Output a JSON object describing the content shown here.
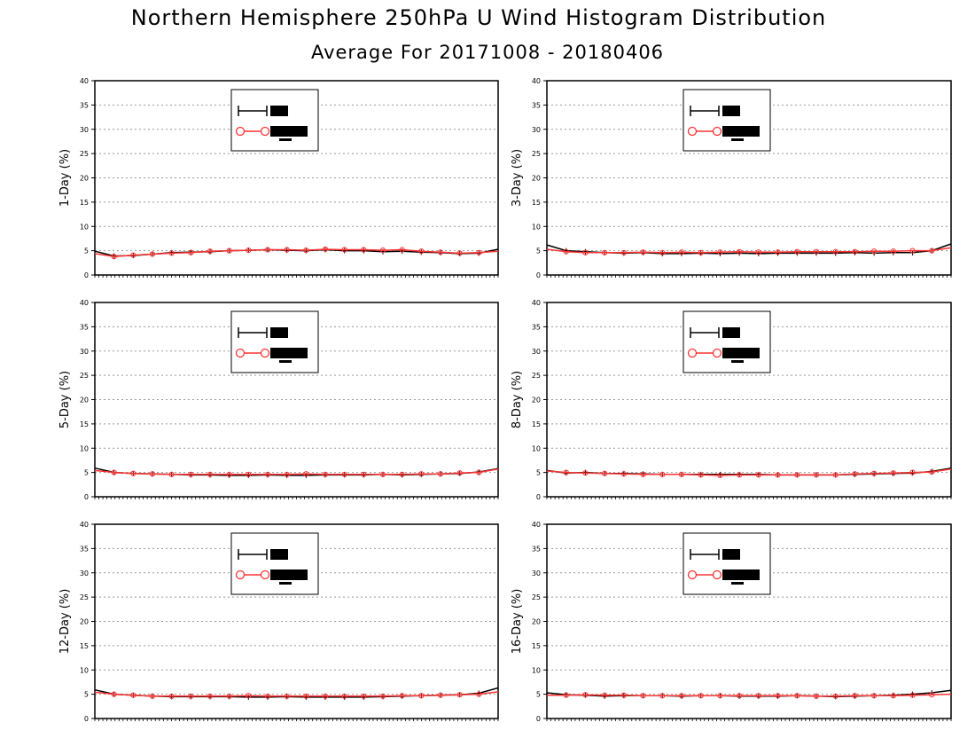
{
  "title": "Northern Hemisphere 250hPa U Wind Histogram Distribution",
  "subtitle": "Average For 20171008 - 20180406",
  "colors": {
    "series_1": "#000000",
    "series_2": "#ff3333",
    "grid": "#999999",
    "axis": "#000000"
  },
  "chart_data": [
    {
      "type": "line",
      "ylabel": "1-Day (%)",
      "ylim": [
        0,
        40
      ],
      "yticks": [
        0,
        5,
        10,
        15,
        20,
        25,
        30,
        35,
        40
      ],
      "grid": true,
      "legend": "top-center",
      "series": [
        {
          "name": "",
          "marker": "plus",
          "values": [
            4.9,
            3.9,
            4.0,
            4.3,
            4.6,
            4.7,
            4.8,
            5.0,
            5.1,
            5.2,
            5.1,
            5.0,
            5.2,
            5.0,
            5.0,
            4.8,
            4.9,
            4.7,
            4.6,
            4.4,
            4.5,
            5.3
          ]
        },
        {
          "name": "",
          "marker": "circle",
          "values": [
            4.4,
            3.8,
            4.1,
            4.3,
            4.5,
            4.6,
            4.9,
            5.0,
            5.1,
            5.2,
            5.2,
            5.1,
            5.3,
            5.2,
            5.2,
            5.1,
            5.2,
            4.9,
            4.7,
            4.5,
            4.6,
            4.9
          ]
        }
      ]
    },
    {
      "type": "line",
      "ylabel": "3-Day (%)",
      "ylim": [
        0,
        40
      ],
      "yticks": [
        0,
        5,
        10,
        15,
        20,
        25,
        30,
        35,
        40
      ],
      "grid": true,
      "legend": "top-center",
      "series": [
        {
          "name": "",
          "marker": "plus",
          "values": [
            6.2,
            5.0,
            4.8,
            4.6,
            4.5,
            4.6,
            4.4,
            4.4,
            4.5,
            4.4,
            4.5,
            4.4,
            4.5,
            4.5,
            4.5,
            4.5,
            4.6,
            4.5,
            4.6,
            4.6,
            5.0,
            6.4
          ]
        },
        {
          "name": "",
          "marker": "circle",
          "values": [
            5.3,
            4.8,
            4.6,
            4.6,
            4.6,
            4.7,
            4.6,
            4.7,
            4.6,
            4.7,
            4.8,
            4.7,
            4.7,
            4.8,
            4.8,
            4.8,
            4.8,
            4.9,
            4.9,
            5.0,
            5.0,
            5.6
          ]
        }
      ]
    },
    {
      "type": "line",
      "ylabel": "5-Day (%)",
      "ylim": [
        0,
        40
      ],
      "yticks": [
        0,
        5,
        10,
        15,
        20,
        25,
        30,
        35,
        40
      ],
      "grid": true,
      "legend": "top-center",
      "series": [
        {
          "name": "",
          "marker": "plus",
          "values": [
            5.9,
            5.0,
            4.8,
            4.7,
            4.6,
            4.5,
            4.5,
            4.4,
            4.4,
            4.5,
            4.4,
            4.4,
            4.5,
            4.5,
            4.5,
            4.6,
            4.5,
            4.6,
            4.7,
            4.8,
            5.1,
            5.8
          ]
        },
        {
          "name": "",
          "marker": "circle",
          "values": [
            5.4,
            5.0,
            4.8,
            4.7,
            4.6,
            4.6,
            4.6,
            4.6,
            4.6,
            4.6,
            4.6,
            4.7,
            4.6,
            4.6,
            4.6,
            4.6,
            4.6,
            4.7,
            4.7,
            4.9,
            5.0,
            5.7
          ]
        }
      ]
    },
    {
      "type": "line",
      "ylabel": "8-Day (%)",
      "ylim": [
        0,
        40
      ],
      "yticks": [
        0,
        5,
        10,
        15,
        20,
        25,
        30,
        35,
        40
      ],
      "grid": true,
      "legend": "top-center",
      "series": [
        {
          "name": "",
          "marker": "plus",
          "values": [
            5.4,
            4.9,
            5.0,
            4.8,
            4.8,
            4.7,
            4.6,
            4.6,
            4.6,
            4.6,
            4.6,
            4.6,
            4.5,
            4.5,
            4.5,
            4.5,
            4.6,
            4.7,
            4.8,
            4.9,
            5.2,
            5.9
          ]
        },
        {
          "name": "",
          "marker": "circle",
          "values": [
            5.3,
            5.0,
            4.9,
            4.8,
            4.7,
            4.6,
            4.6,
            4.6,
            4.5,
            4.4,
            4.5,
            4.5,
            4.5,
            4.5,
            4.5,
            4.5,
            4.7,
            4.8,
            4.9,
            5.0,
            5.1,
            5.7
          ]
        }
      ]
    },
    {
      "type": "line",
      "ylabel": "12-Day (%)",
      "ylim": [
        0,
        40
      ],
      "yticks": [
        0,
        5,
        10,
        15,
        20,
        25,
        30,
        35,
        40
      ],
      "grid": true,
      "legend": "top-center",
      "series": [
        {
          "name": "",
          "marker": "plus",
          "values": [
            5.9,
            5.0,
            4.8,
            4.6,
            4.5,
            4.5,
            4.5,
            4.5,
            4.4,
            4.4,
            4.5,
            4.4,
            4.4,
            4.4,
            4.4,
            4.5,
            4.6,
            4.7,
            4.8,
            4.9,
            5.2,
            6.3
          ]
        },
        {
          "name": "",
          "marker": "circle",
          "values": [
            5.4,
            5.0,
            4.8,
            4.6,
            4.6,
            4.6,
            4.6,
            4.6,
            4.7,
            4.6,
            4.6,
            4.6,
            4.6,
            4.6,
            4.6,
            4.6,
            4.7,
            4.7,
            4.8,
            4.9,
            5.0,
            5.5
          ]
        }
      ]
    },
    {
      "type": "line",
      "ylabel": "16-Day (%)",
      "ylim": [
        0,
        40
      ],
      "yticks": [
        0,
        5,
        10,
        15,
        20,
        25,
        30,
        35,
        40
      ],
      "grid": true,
      "legend": "top-center",
      "series": [
        {
          "name": "",
          "marker": "plus",
          "values": [
            5.3,
            4.9,
            4.8,
            4.6,
            4.7,
            4.7,
            4.7,
            4.6,
            4.7,
            4.7,
            4.6,
            4.6,
            4.6,
            4.7,
            4.6,
            4.5,
            4.6,
            4.7,
            4.8,
            5.0,
            5.3,
            5.8
          ]
        },
        {
          "name": "",
          "marker": "circle",
          "values": [
            4.8,
            4.8,
            4.9,
            4.8,
            4.8,
            4.7,
            4.7,
            4.7,
            4.7,
            4.7,
            4.7,
            4.7,
            4.7,
            4.7,
            4.6,
            4.6,
            4.7,
            4.7,
            4.7,
            4.8,
            4.9,
            5.0
          ]
        }
      ]
    }
  ]
}
